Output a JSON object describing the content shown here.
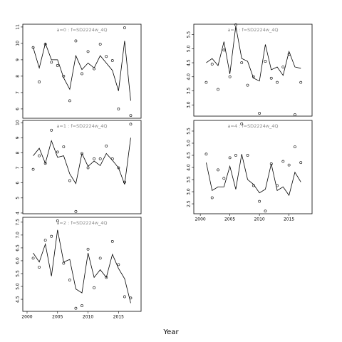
{
  "xlabel": "Year",
  "chart_data": [
    {
      "type": "line",
      "title": "a=0 : f=SD2224w_4Q",
      "color": "#000000",
      "x": [
        2001,
        2002,
        2003,
        2004,
        2005,
        2006,
        2007,
        2008,
        2009,
        2010,
        2011,
        2012,
        2013,
        2014,
        2015,
        2016,
        2017
      ],
      "series": [
        {
          "style": "line",
          "values": [
            9.75,
            8.5,
            10.0,
            9.0,
            9.0,
            7.9,
            7.2,
            9.25,
            8.4,
            8.8,
            8.5,
            9.25,
            8.8,
            8.35,
            7.1,
            10.15,
            6.5
          ]
        },
        {
          "style": "points",
          "values": [
            9.75,
            7.65,
            9.95,
            8.85,
            8.65,
            8.0,
            6.5,
            10.15,
            8.15,
            9.5,
            8.45,
            9.95,
            9.2,
            8.95,
            6.0,
            10.95,
            5.6
          ]
        }
      ],
      "xlim": [
        1999.3,
        2018.7
      ],
      "ylim": [
        5.43,
        11.17
      ],
      "yticks": [
        6,
        7,
        8,
        9,
        10,
        11
      ]
    },
    {
      "type": "line",
      "title": "a=1 : f=SD2224w_4Q",
      "color": "#000000",
      "x": [
        2001,
        2002,
        2003,
        2004,
        2005,
        2006,
        2007,
        2008,
        2009,
        2010,
        2011,
        2012,
        2013,
        2014,
        2015,
        2016,
        2017
      ],
      "series": [
        {
          "style": "line",
          "values": [
            7.8,
            8.3,
            7.3,
            8.8,
            7.7,
            7.8,
            6.6,
            5.95,
            7.95,
            7.1,
            7.45,
            7.15,
            7.95,
            7.5,
            7.0,
            5.9,
            9.0
          ]
        },
        {
          "style": "points",
          "values": [
            6.9,
            7.8,
            7.3,
            9.5,
            8.05,
            8.4,
            6.15,
            4.1,
            7.95,
            7.0,
            7.6,
            7.6,
            8.45,
            7.6,
            7.0,
            6.05,
            9.9
          ]
        }
      ],
      "xlim": [
        1999.3,
        2018.7
      ],
      "ylim": [
        3.95,
        10.15
      ],
      "yticks": [
        4,
        5,
        6,
        7,
        8,
        9,
        10
      ]
    },
    {
      "type": "line",
      "title": "a=2 : f=SD2224w_4Q",
      "color": "#000000",
      "x": [
        2001,
        2002,
        2003,
        2004,
        2005,
        2006,
        2007,
        2008,
        2009,
        2010,
        2011,
        2012,
        2013,
        2014,
        2015,
        2016,
        2017
      ],
      "series": [
        {
          "style": "line",
          "values": [
            6.3,
            5.95,
            6.65,
            5.4,
            7.2,
            5.95,
            6.05,
            4.9,
            4.75,
            6.3,
            5.35,
            5.65,
            5.35,
            6.25,
            5.7,
            5.3,
            4.35
          ]
        },
        {
          "style": "points",
          "values": [
            6.1,
            5.75,
            6.8,
            6.95,
            7.55,
            5.9,
            5.25,
            4.15,
            4.25,
            6.45,
            4.95,
            6.1,
            5.35,
            6.75,
            5.85,
            4.6,
            4.55
          ]
        }
      ],
      "xlim": [
        1999.3,
        2018.7
      ],
      "ylim": [
        4.03,
        7.69
      ],
      "yticks": [
        4.5,
        {
          "value": 5,
          "label": "5.0"
        },
        5.5,
        {
          "value": 6,
          "label": "6.0"
        },
        6.5,
        {
          "value": 7,
          "label": "7.0"
        },
        7.5
      ],
      "xticks": [
        2000,
        2005,
        2010,
        2015
      ]
    },
    {
      "type": "line",
      "title": "a=3 : f=SD2224w_4Q",
      "color": "#000000",
      "x": [
        2001,
        2002,
        2003,
        2004,
        2005,
        2006,
        2007,
        2008,
        2009,
        2010,
        2011,
        2012,
        2013,
        2014,
        2015,
        2016,
        2017
      ],
      "series": [
        {
          "style": "line",
          "values": [
            4.5,
            4.65,
            4.4,
            5.25,
            4.1,
            5.8,
            4.65,
            4.55,
            3.95,
            3.85,
            5.15,
            4.25,
            4.35,
            4.05,
            4.9,
            4.35,
            4.3
          ]
        },
        {
          "style": "points",
          "values": [
            3.8,
            4.45,
            3.55,
            4.95,
            4.0,
            5.85,
            4.5,
            3.7,
            4.0,
            2.7,
            4.55,
            3.95,
            3.8,
            4.35,
            4.8,
            2.65,
            3.8
          ]
        }
      ],
      "xlim": [
        1998.9,
        2018.9
      ],
      "ylim": [
        2.6,
        5.87
      ],
      "yticks": [
        {
          "value": 3,
          "label": "3.0"
        },
        3.5,
        {
          "value": 4,
          "label": "4.0"
        },
        4.5,
        {
          "value": 5,
          "label": "5.0"
        },
        5.5
      ]
    },
    {
      "type": "line",
      "title": "a=4 : f=SD2224w_4Q",
      "color": "#000000",
      "x": [
        2001,
        2002,
        2003,
        2004,
        2005,
        2006,
        2007,
        2008,
        2009,
        2010,
        2011,
        2012,
        2013,
        2014,
        2015,
        2016,
        2017
      ],
      "series": [
        {
          "style": "line",
          "values": [
            4.2,
            3.05,
            3.2,
            3.2,
            4.05,
            3.1,
            4.55,
            3.5,
            3.3,
            2.95,
            3.1,
            4.15,
            3.05,
            3.2,
            2.85,
            3.8,
            3.4
          ]
        },
        {
          "style": "points",
          "values": [
            4.55,
            2.75,
            3.9,
            3.55,
            4.4,
            4.5,
            5.8,
            4.5,
            3.25,
            2.6,
            2.2,
            4.15,
            3.25,
            4.25,
            4.1,
            4.85,
            4.2
          ]
        }
      ],
      "xlim": [
        1998.9,
        2018.9
      ],
      "ylim": [
        2.09,
        5.94
      ],
      "yticks": [
        2.5,
        {
          "value": 3,
          "label": "3.0"
        },
        3.5,
        {
          "value": 4,
          "label": "4.0"
        },
        4.5,
        {
          "value": 5,
          "label": "5.0"
        },
        5.5
      ],
      "xticks": [
        2000,
        2005,
        2010,
        2015
      ]
    }
  ]
}
